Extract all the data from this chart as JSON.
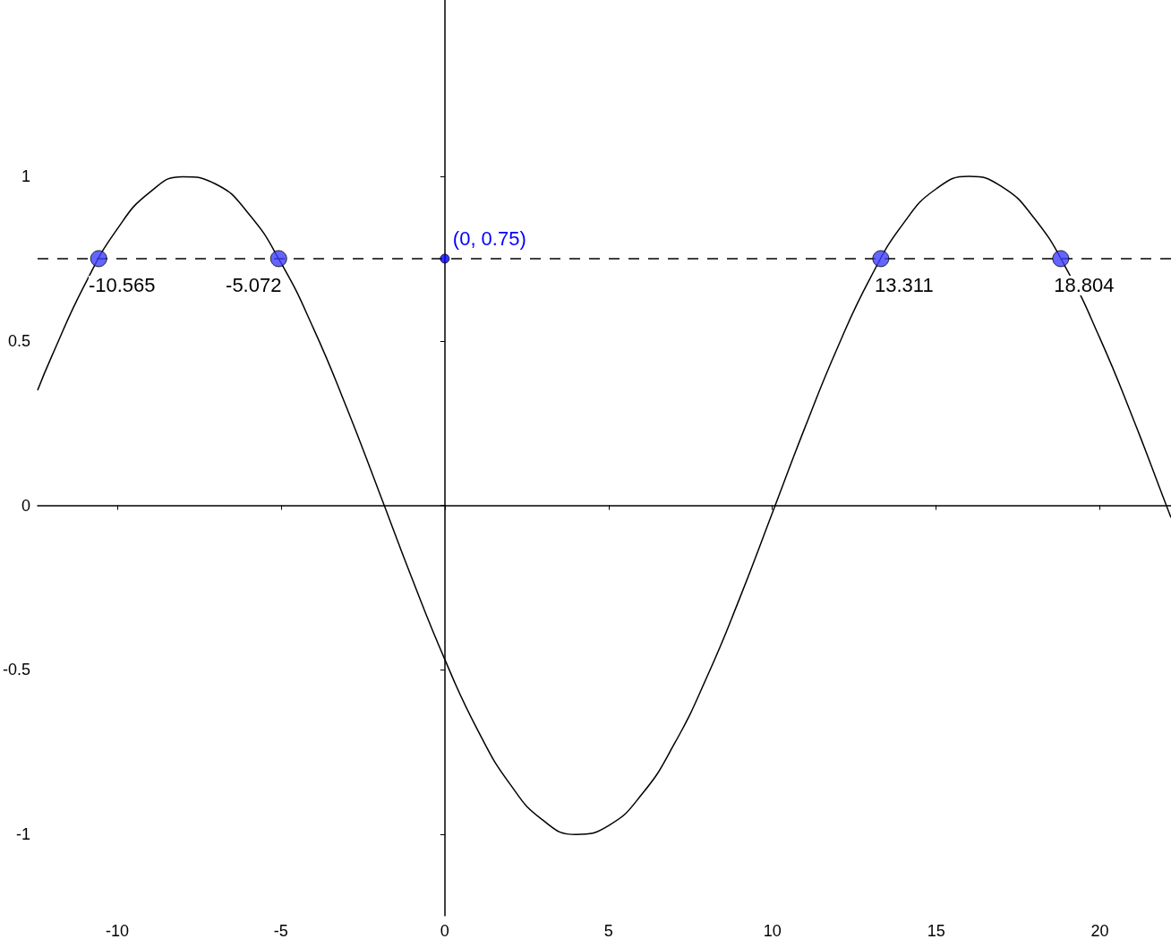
{
  "chart_data": {
    "type": "line",
    "xlim": [
      -12.43,
      22.17
    ],
    "ylim": [
      -1.247,
      1.536
    ],
    "xticks": [
      -10,
      -5,
      0,
      5,
      10,
      15,
      20
    ],
    "yticks": [
      -1,
      -0.5,
      0,
      0.5,
      1
    ],
    "ref_lines": [
      {
        "axis": "y",
        "value": 0.75,
        "color": "#000000",
        "line_style": "dashed"
      }
    ],
    "annotations": [
      {
        "text": "-10.565",
        "x": -10.565,
        "y": 0.75
      },
      {
        "text": "-5.072",
        "x": -5.072,
        "y": 0.75
      },
      {
        "text": "13.311",
        "x": 13.311,
        "y": 0.75
      },
      {
        "text": "18.804",
        "x": 18.804,
        "y": 0.75
      },
      {
        "text": "(0, 0.75)",
        "x": 0,
        "y": 0.75
      }
    ],
    "series": [
      {
        "color": "#000000",
        "marker": "none",
        "line_style": "solid",
        "x": [
          -12.43,
          -12,
          -11,
          -10,
          -9,
          -8,
          -7,
          -6,
          -5,
          -4,
          -3,
          -2,
          -1,
          0,
          1,
          2,
          3,
          4,
          5,
          6,
          7,
          8,
          9,
          10,
          11,
          12,
          13,
          14,
          15,
          16,
          17,
          18,
          19,
          20,
          21,
          22,
          22.17
        ],
        "values": [
          0.35,
          0.453,
          0.669,
          0.84,
          0.952,
          0.999,
          0.977,
          0.888,
          0.737,
          0.536,
          0.298,
          0.04,
          -0.222,
          -0.468,
          -0.682,
          -0.848,
          -0.957,
          -1.0,
          -0.973,
          -0.88,
          -0.726,
          -0.522,
          -0.283,
          -0.023,
          0.238,
          0.482,
          0.693,
          0.857,
          0.962,
          1.0,
          0.969,
          0.872,
          0.715,
          0.508,
          0.267,
          0.007,
          -0.037
        ]
      },
      {
        "type": "scatter",
        "color": "#3f3fff",
        "marker": "circle",
        "x": [
          -10.565,
          -5.072,
          13.311,
          18.804
        ],
        "values": [
          0.75,
          0.75,
          0.75,
          0.75
        ]
      },
      {
        "type": "scatter",
        "color": "#0000ff",
        "marker": "circle",
        "x": [
          0
        ],
        "values": [
          0.75
        ]
      }
    ]
  }
}
